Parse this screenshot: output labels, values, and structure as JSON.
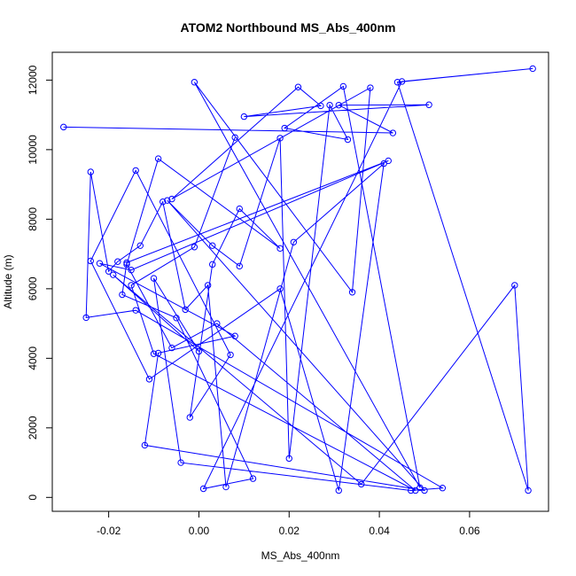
{
  "chart_data": {
    "type": "line",
    "title": "ATOM2 Northbound MS_Abs_400nm",
    "xlabel": "MS_Abs_400nm",
    "ylabel": "Altitude (m)",
    "xlim": [
      -0.0325,
      0.0775
    ],
    "ylim": [
      -400,
      12800
    ],
    "x_ticks": [
      "-0.02",
      "0.00",
      "0.02",
      "0.04",
      "0.06"
    ],
    "x_tick_values": [
      -0.02,
      0.0,
      0.02,
      0.04,
      0.06
    ],
    "y_ticks": [
      "0",
      "2000",
      "4000",
      "6000",
      "8000",
      "10000",
      "12000"
    ],
    "y_tick_values": [
      0,
      2000,
      4000,
      6000,
      8000,
      10000,
      12000
    ],
    "grid": false,
    "legend": "none",
    "series_color": "#0000ff",
    "series": [
      {
        "marker": "open-circle",
        "x": [
          -0.03,
          0.043,
          0.031,
          0.051,
          0.01,
          0.027,
          0.022,
          -0.006,
          0.038,
          0.034,
          -0.001,
          0.049,
          0.032,
          0.019,
          0.033,
          0.029,
          0.02,
          0.018,
          0.009,
          0.003,
          -0.007,
          0.05,
          -0.012,
          -0.009,
          0.008,
          -0.022,
          -0.015,
          0.042,
          -0.016,
          -0.017,
          -0.005,
          0.012,
          0.001,
          0.045,
          0.074,
          0.044,
          0.073,
          0.07,
          0.036,
          -0.019,
          0.0,
          -0.01,
          -0.004,
          0.047,
          0.054,
          -0.014,
          -0.025,
          -0.024,
          -0.02,
          -0.018,
          -0.013,
          -0.008,
          -0.003,
          0.002,
          0.006,
          0.021,
          0.041,
          0.031,
          0.018,
          -0.011,
          -0.024,
          -0.014,
          0.007,
          -0.002,
          0.003,
          0.009,
          0.018,
          -0.009,
          -0.016,
          -0.006,
          0.004,
          0.048,
          -0.01,
          -0.015,
          -0.001,
          0.008
        ],
        "y": [
          10650,
          10480,
          11280,
          11290,
          10950,
          11260,
          11800,
          8580,
          11780,
          5900,
          11940,
          280,
          11820,
          10620,
          10290,
          11280,
          1120,
          10330,
          6650,
          7240,
          8540,
          200,
          1500,
          4150,
          4640,
          6730,
          6540,
          9680,
          6750,
          5830,
          5160,
          540,
          250,
          11960,
          12330,
          11940,
          200,
          6100,
          380,
          6400,
          4200,
          6300,
          1000,
          200,
          270,
          5380,
          5170,
          9360,
          6500,
          6780,
          7240,
          8500,
          5400,
          6100,
          300,
          7340,
          9600,
          200,
          6000,
          3400,
          6800,
          9400,
          4100,
          2300,
          6700,
          8300,
          7160,
          9740,
          6700,
          4300,
          5000,
          200,
          4130,
          6100,
          7200,
          10350
        ]
      }
    ]
  }
}
